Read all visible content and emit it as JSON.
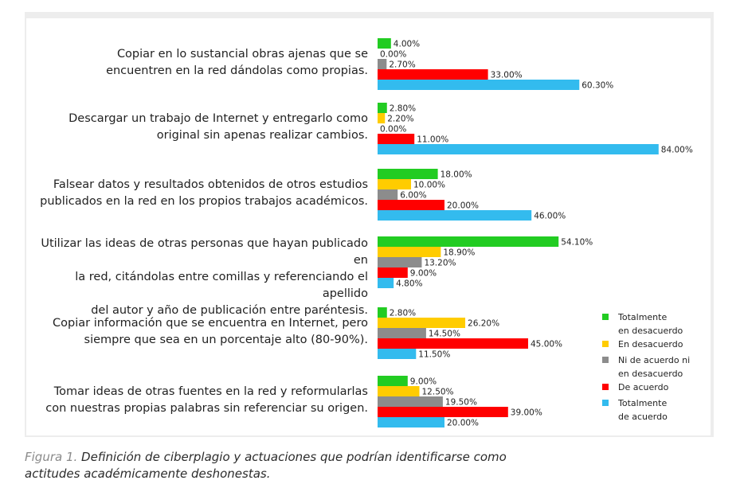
{
  "chart_data": {
    "type": "bar",
    "orientation": "horizontal",
    "categories": [
      [
        "Copiar en lo sustancial obras ajenas que se",
        "encuentren en la red dándolas como propias."
      ],
      [
        "Descargar un trabajo de Internet y entregarlo como",
        "original sin apenas realizar cambios."
      ],
      [
        "Falsear datos y resultados obtenidos de otros estudios",
        "publicados en la red en los propios trabajos académicos."
      ],
      [
        "Utilizar las ideas de otras personas que hayan publicado en",
        "la red, citándolas entre comillas y referenciando el apellido",
        "del autor y año de publicación entre paréntesis."
      ],
      [
        "Copiar información que se encuentra en Internet, pero",
        "siempre que sea en un porcentaje alto (80-90%)."
      ],
      [
        "Tomar ideas de otras fuentes en la red y reformularlas",
        "con nuestras propias palabras sin referenciar su origen."
      ]
    ],
    "series": [
      {
        "name": "Totalmente en desacuerdo",
        "legend_lines": [
          "Totalmente",
          "en desacuerdo"
        ],
        "color": "#22cc22",
        "values": [
          4.0,
          2.8,
          18.0,
          54.1,
          2.8,
          9.0
        ]
      },
      {
        "name": "En desacuerdo",
        "legend_lines": [
          "En desacuerdo"
        ],
        "color": "#ffcc00",
        "values": [
          0.0,
          2.2,
          10.0,
          18.9,
          26.2,
          12.5
        ]
      },
      {
        "name": "Ni de acuerdo ni en desacuerdo",
        "legend_lines": [
          "Ni de acuerdo ni",
          "en desacuerdo"
        ],
        "color": "#8c8c8c",
        "values": [
          2.7,
          0.0,
          6.0,
          13.2,
          14.5,
          19.5
        ]
      },
      {
        "name": "De acuerdo",
        "legend_lines": [
          "De acuerdo"
        ],
        "color": "#ff0000",
        "values": [
          33.0,
          11.0,
          20.0,
          9.0,
          45.0,
          39.0
        ]
      },
      {
        "name": "Totalmente de acuerdo",
        "legend_lines": [
          "Totalmente",
          "de acuerdo"
        ],
        "color": "#33bbee",
        "values": [
          60.3,
          84.0,
          46.0,
          4.8,
          11.5,
          20.0
        ]
      }
    ],
    "value_suffix": "%",
    "xlim": [
      0,
      100
    ],
    "grid": false,
    "legend_position": "right"
  },
  "caption": {
    "figure_label": "Figura 1.",
    "lines": [
      "Definición de ciberplagio y actuaciones que podrían identificarse como",
      "actitudes académicamente deshonestas."
    ]
  }
}
